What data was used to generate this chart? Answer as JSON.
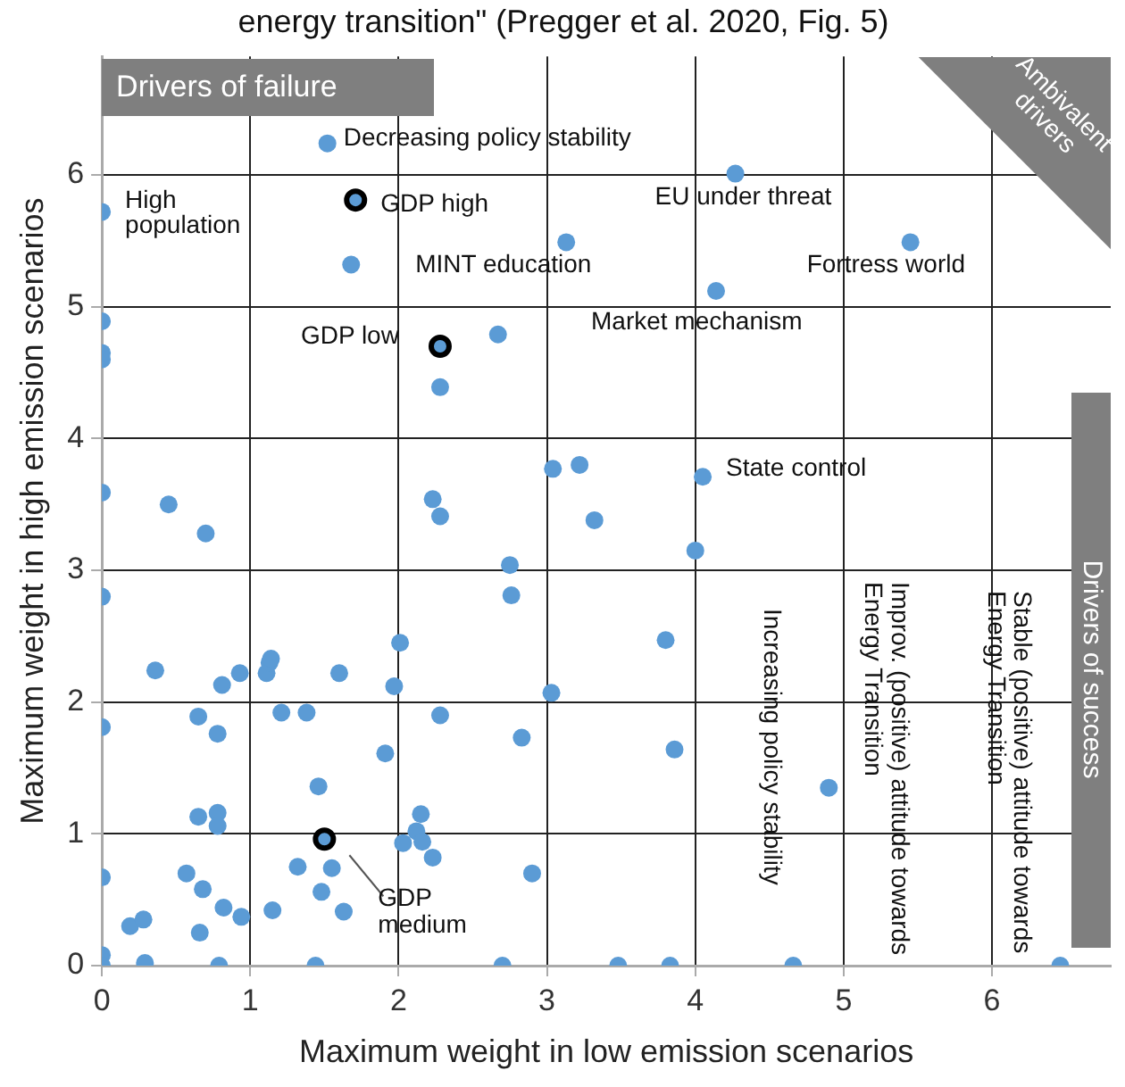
{
  "chart_data": {
    "type": "scatter",
    "title": "energy transition\" (Pregger et al. 2020, Fig. 5)",
    "xlabel": "Maximum weight in low emission scenarios",
    "ylabel": "Maximum weight in high emission scenarios",
    "xlim": [
      0,
      6.8
    ],
    "ylim": [
      0,
      6.9
    ],
    "xticks": [
      0,
      1,
      2,
      3,
      4,
      5,
      6
    ],
    "yticks": [
      0,
      1,
      2,
      3,
      4,
      5,
      6
    ],
    "grid": true,
    "legend": false,
    "marker": "circle",
    "series": [
      {
        "color": "#5b9bd5",
        "x": [
          1.52,
          0,
          4.27,
          3.13,
          1.68,
          5.45,
          4.14,
          2.67,
          0,
          0,
          0,
          2.28,
          0,
          0.45,
          0.7,
          0,
          2.23,
          2.28,
          3.04,
          3.22,
          3.32,
          2.75,
          2.76,
          4.05,
          4,
          3.8,
          3.86,
          4.9,
          0.36,
          0.81,
          0.93,
          1.11,
          1.13,
          1.14,
          1.6,
          2.01,
          1.97,
          3.03,
          0,
          0.65,
          0.78,
          1.21,
          1.38,
          2.28,
          1.91,
          2.83,
          1.46,
          0.65,
          0.78,
          0.78,
          2.15,
          2.12,
          2.03,
          2.16,
          2.23,
          2.9,
          0,
          0.57,
          0.68,
          0.82,
          0.94,
          1.15,
          1.32,
          1.55,
          1.48,
          1.63,
          0.19,
          0.28,
          0.66,
          0,
          0,
          0.29,
          0.79,
          1.44,
          2.7,
          3.48,
          3.83,
          4.66,
          6.46
        ],
        "values": [
          6.24,
          5.72,
          6.01,
          5.49,
          5.32,
          5.49,
          5.12,
          4.79,
          4.89,
          4.65,
          4.6,
          4.39,
          3.59,
          3.5,
          3.28,
          2.8,
          3.54,
          3.41,
          3.77,
          3.8,
          3.38,
          3.04,
          2.81,
          3.71,
          3.15,
          2.47,
          1.64,
          1.35,
          2.24,
          2.13,
          2.22,
          2.22,
          2.3,
          2.33,
          2.22,
          2.45,
          2.12,
          2.07,
          1.81,
          1.89,
          1.76,
          1.92,
          1.92,
          1.9,
          1.61,
          1.73,
          1.36,
          1.13,
          1.16,
          1.06,
          1.15,
          1.02,
          0.93,
          0.94,
          0.82,
          0.7,
          0.67,
          0.7,
          0.58,
          0.44,
          0.37,
          0.42,
          0.75,
          0.74,
          0.56,
          0.41,
          0.3,
          0.35,
          0.25,
          0.08,
          0,
          0.02,
          0,
          0,
          0,
          0,
          0,
          0,
          0
        ]
      },
      {
        "color": "#000000",
        "x": [
          1.71,
          2.28,
          1.5
        ],
        "values": [
          5.81,
          4.7,
          0.96
        ]
      }
    ],
    "annotations": [
      "Drivers of failure",
      "Ambivalent drivers",
      "Drivers of success",
      {
        "text": "Decreasing policy stability",
        "x": 1.52,
        "y": 6.24
      },
      {
        "text": "High population",
        "x": 0,
        "y": 5.72
      },
      {
        "text": "GDP high",
        "x": 1.71,
        "y": 5.81
      },
      {
        "text": "EU under threat",
        "x": 4.27,
        "y": 6.01
      },
      {
        "text": "MINT education",
        "x": 1.68,
        "y": 5.32
      },
      {
        "text": "Fortress world",
        "x": 5.45,
        "y": 5.49
      },
      {
        "text": "Market mechanism",
        "x": 4.14,
        "y": 5.12
      },
      {
        "text": "GDP low",
        "x": 2.28,
        "y": 4.7
      },
      {
        "text": "State control",
        "x": 4.05,
        "y": 3.71
      },
      {
        "text": "GDP medium",
        "x": 1.5,
        "y": 0.96
      },
      "Increasing policy stability",
      "Improv. (positive) attitude towards Energy Transition",
      "Stable (positive) attitude towards Energy Transition"
    ]
  }
}
